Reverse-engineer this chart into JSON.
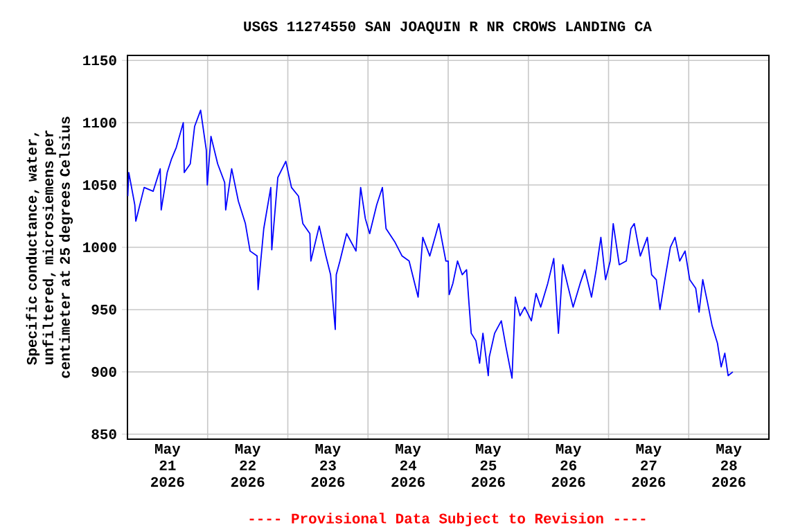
{
  "chart_data": {
    "type": "line",
    "title": "USGS 11274550 SAN JOAQUIN R NR CROWS LANDING CA",
    "ylabel": "Specific conductance, water, unfiltered, microsiemens per centimeter at 25 degrees Celsius",
    "annotations": [
      "---- Provisional Data Subject to Revision ----"
    ],
    "xlim": [
      "2026-05-21T00:00",
      "2026-05-29T00:00"
    ],
    "xticks": [
      {
        "value": "2026-05-21T12:00",
        "label": "May 21 2026"
      },
      {
        "value": "2026-05-22T12:00",
        "label": "May 22 2026"
      },
      {
        "value": "2026-05-23T12:00",
        "label": "May 23 2026"
      },
      {
        "value": "2026-05-24T12:00",
        "label": "May 24 2026"
      },
      {
        "value": "2026-05-25T12:00",
        "label": "May 25 2026"
      },
      {
        "value": "2026-05-26T12:00",
        "label": "May 26 2026"
      },
      {
        "value": "2026-05-27T12:00",
        "label": "May 27 2026"
      },
      {
        "value": "2026-05-28T12:00",
        "label": "May 28 2026"
      },
      {
        "value": "2026-05-22",
        "label": null
      },
      {
        "value": "2026-05-23",
        "label": null
      },
      {
        "value": "2026-05-24",
        "label": null
      },
      {
        "value": "2026-05-25",
        "label": null
      },
      {
        "value": "2026-05-26",
        "label": null
      },
      {
        "value": "2026-05-27",
        "label": null
      },
      {
        "value": "2026-05-28",
        "label": null
      }
    ],
    "ylim": [
      846,
      1154
    ],
    "yticks": [
      850,
      900,
      950,
      1000,
      1050,
      1100,
      1150
    ],
    "grid": true,
    "series": [
      {
        "color": "#0000ff",
        "x": [
          "2026-05-21T00:06",
          "2026-05-21T00:24",
          "2026-05-21T02:12",
          "2026-05-21T02:30",
          "2026-05-21T05:00",
          "2026-05-21T07:42",
          "2026-05-21T09:48",
          "2026-05-21T10:06",
          "2026-05-21T11:54",
          "2026-05-21T13:12",
          "2026-05-21T14:36",
          "2026-05-21T16:42",
          "2026-05-21T17:00",
          "2026-05-21T18:48",
          "2026-05-21T20:06",
          "2026-05-21T21:54",
          "2026-05-21T23:36",
          "2026-05-21T23:54",
          "2026-05-22T01:00",
          "2026-05-22T03:00",
          "2026-05-22T05:06",
          "2026-05-22T05:24",
          "2026-05-22T07:12",
          "2026-05-22T09:12",
          "2026-05-22T11:18",
          "2026-05-22T12:42",
          "2026-05-22T14:48",
          "2026-05-22T15:06",
          "2026-05-22T16:48",
          "2026-05-22T18:54",
          "2026-05-22T19:12",
          "2026-05-22T21:00",
          "2026-05-22T23:24",
          "2026-05-23T01:06",
          "2026-05-23T03:12",
          "2026-05-23T04:30",
          "2026-05-23T06:36",
          "2026-05-23T06:54",
          "2026-05-23T09:24",
          "2026-05-23T11:24",
          "2026-05-23T12:48",
          "2026-05-23T14:12",
          "2026-05-23T14:30",
          "2026-05-23T15:36",
          "2026-05-23T17:36",
          "2026-05-23T20:24",
          "2026-05-23T21:48",
          "2026-05-23T23:12",
          "2026-05-24T00:30",
          "2026-05-24T02:36",
          "2026-05-24T04:18",
          "2026-05-24T05:24",
          "2026-05-24T08:06",
          "2026-05-24T10:12",
          "2026-05-24T12:18",
          "2026-05-24T15:00",
          "2026-05-24T16:24",
          "2026-05-24T18:30",
          "2026-05-24T21:12",
          "2026-05-24T23:18",
          "2026-05-25T00:00",
          "2026-05-25T00:18",
          "2026-05-25T01:24",
          "2026-05-25T02:48",
          "2026-05-25T04:12",
          "2026-05-25T05:30",
          "2026-05-25T06:12",
          "2026-05-25T06:54",
          "2026-05-25T08:18",
          "2026-05-25T09:24",
          "2026-05-25T10:24",
          "2026-05-25T12:00",
          "2026-05-25T12:18",
          "2026-05-25T13:54",
          "2026-05-25T15:54",
          "2026-05-25T17:18",
          "2026-05-25T19:06",
          "2026-05-25T20:06",
          "2026-05-25T21:30",
          "2026-05-25T22:54",
          "2026-05-26T00:54",
          "2026-05-26T02:18",
          "2026-05-26T03:42",
          "2026-05-26T05:48",
          "2026-05-26T07:36",
          "2026-05-26T09:00",
          "2026-05-26T10:18",
          "2026-05-26T12:00",
          "2026-05-26T13:24",
          "2026-05-26T15:30",
          "2026-05-26T16:54",
          "2026-05-26T18:54",
          "2026-05-26T20:18",
          "2026-05-26T21:42",
          "2026-05-26T23:06",
          "2026-05-27T00:30",
          "2026-05-27T01:24",
          "2026-05-27T03:12",
          "2026-05-27T05:18",
          "2026-05-27T06:42",
          "2026-05-27T07:42",
          "2026-05-27T09:30",
          "2026-05-27T11:36",
          "2026-05-27T12:54",
          "2026-05-27T14:18",
          "2026-05-27T15:24",
          "2026-05-27T17:06",
          "2026-05-27T18:30",
          "2026-05-27T19:54",
          "2026-05-27T21:18",
          "2026-05-27T22:54",
          "2026-05-28T00:18",
          "2026-05-28T02:06",
          "2026-05-28T03:06",
          "2026-05-28T04:12",
          "2026-05-28T05:36",
          "2026-05-28T07:00",
          "2026-05-28T08:36",
          "2026-05-28T09:42",
          "2026-05-28T10:48",
          "2026-05-28T11:48",
          "2026-05-28T13:12"
        ],
        "values": [
          1041,
          1060,
          1034,
          1021,
          1048,
          1045,
          1063,
          1030,
          1060,
          1071,
          1080,
          1100,
          1060,
          1067,
          1097,
          1110,
          1078,
          1050,
          1089,
          1067,
          1052,
          1030,
          1063,
          1037,
          1019,
          997,
          993,
          966,
          1015,
          1048,
          998,
          1056,
          1069,
          1048,
          1041,
          1019,
          1011,
          989,
          1017,
          993,
          978,
          934,
          978,
          989,
          1011,
          997,
          1048,
          1023,
          1011,
          1034,
          1048,
          1015,
          1004,
          993,
          989,
          960,
          1008,
          993,
          1019,
          989,
          989,
          962,
          971,
          989,
          978,
          982,
          956,
          931,
          925,
          907,
          931,
          897,
          912,
          931,
          941,
          920,
          895,
          960,
          945,
          952,
          941,
          963,
          952,
          971,
          991,
          931,
          986,
          967,
          952,
          971,
          982,
          960,
          982,
          1008,
          974,
          989,
          1019,
          986,
          989,
          1015,
          1019,
          993,
          1008,
          978,
          974,
          950,
          978,
          1000,
          1008,
          989,
          997,
          974,
          967,
          948,
          974,
          956,
          937,
          923,
          904,
          915,
          897,
          900
        ]
      }
    ]
  }
}
